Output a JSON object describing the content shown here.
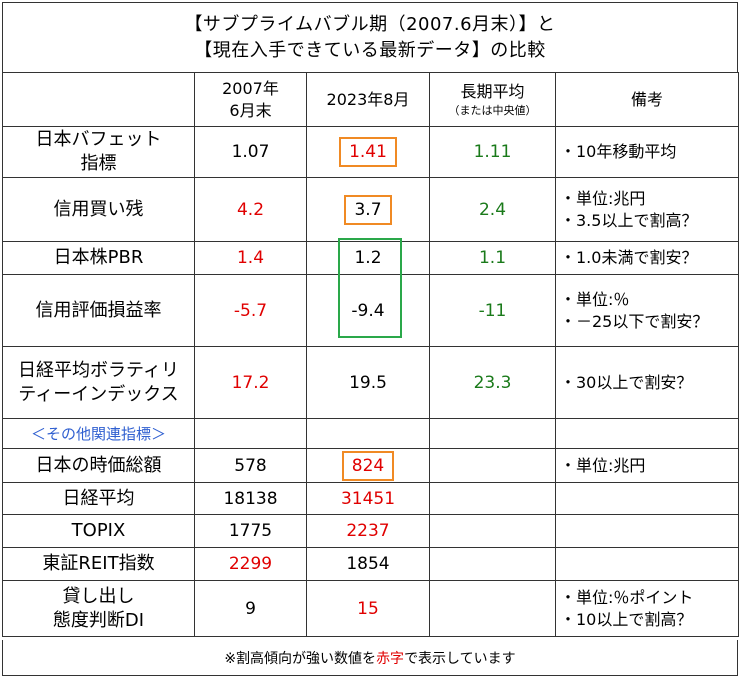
{
  "title": {
    "line1": "【サブプライムバブル期（2007.6月末）】と",
    "line2": "【現在入手できている最新データ】の比較"
  },
  "header": {
    "col1_line1": "2007年",
    "col1_line2": "6月末",
    "col2": "2023年8月",
    "col3_line1": "長期平均",
    "col3_line2": "（または中央値）",
    "col4": "備考"
  },
  "rows": [
    {
      "label1": "日本バフェット",
      "label2": "指標",
      "v2007": "1.07",
      "v2023": "1.41",
      "avg": "1.11",
      "note1": "・10年移動平均",
      "note2": ""
    },
    {
      "label1": "信用買い残",
      "label2": "",
      "v2007": "4.2",
      "v2023": "3.7",
      "avg": "2.4",
      "note1": "・単位:兆円",
      "note2": "・3.5以上で割高？"
    },
    {
      "label1": "日本株PBR",
      "label2": "",
      "v2007": "1.4",
      "v2023": "1.2",
      "avg": "1.1",
      "note1": "・1.0未満で割安？",
      "note2": ""
    },
    {
      "label1": "信用評価損益率",
      "label2": "",
      "v2007": "-5.7",
      "v2023": "-9.4",
      "avg": "-11",
      "note1": "・単位:％",
      "note2": "・－25以下で割安？"
    },
    {
      "label1": "日経平均ボラティリ",
      "label2": "ティーインデックス",
      "v2007": "17.2",
      "v2023": "19.5",
      "avg": "23.3",
      "note1": "・30以上で割安？",
      "note2": ""
    }
  ],
  "section_label": "＜その他関連指標＞",
  "rows2": [
    {
      "label1": "日本の時価総額",
      "label2": "",
      "v2007": "578",
      "v2023": "824",
      "note1": "・単位:兆円",
      "note2": ""
    },
    {
      "label1": "日経平均",
      "label2": "",
      "v2007": "18138",
      "v2023": "31451",
      "note1": "",
      "note2": ""
    },
    {
      "label1": "TOPIX",
      "label2": "",
      "v2007": "1775",
      "v2023": "2237",
      "note1": "",
      "note2": ""
    },
    {
      "label1": "東証REIT指数",
      "label2": "",
      "v2007": "2299",
      "v2023": "1854",
      "note1": "",
      "note2": ""
    },
    {
      "label1": "貸し出し",
      "label2": "態度判断DI",
      "v2007": "9",
      "v2023": "15",
      "note1": "・単位:％ポイント",
      "note2": "・10以上で割高？"
    }
  ],
  "footer": {
    "prefix": "※割高傾向が強い数値を",
    "highlight": "赤字",
    "suffix": "で表示しています"
  },
  "colors": {
    "red": "#e00000",
    "green": "#1a7a1a",
    "orange": "#f08a24",
    "box_green": "#2aa84a",
    "blue": "#2f5fd0"
  }
}
